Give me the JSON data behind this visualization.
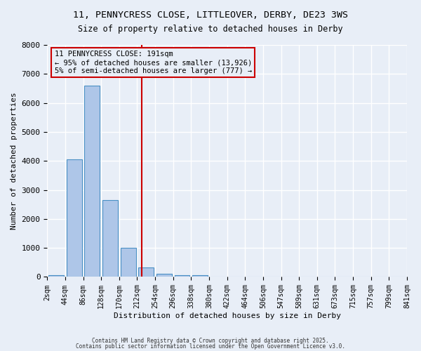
{
  "title_line1": "11, PENNYCRESS CLOSE, LITTLEOVER, DERBY, DE23 3WS",
  "title_line2": "Size of property relative to detached houses in Derby",
  "xlabel": "Distribution of detached houses by size in Derby",
  "ylabel": "Number of detached properties",
  "bar_values": [
    50,
    4050,
    6600,
    2650,
    1000,
    330,
    110,
    70,
    50,
    0,
    0,
    0,
    0,
    0,
    0,
    0,
    0,
    0,
    0,
    0
  ],
  "bar_labels": [
    "2sqm",
    "44sqm",
    "86sqm",
    "128sqm",
    "170sqm",
    "212sqm",
    "254sqm",
    "296sqm",
    "338sqm",
    "380sqm",
    "422sqm",
    "464sqm",
    "506sqm",
    "547sqm",
    "589sqm",
    "631sqm",
    "673sqm",
    "715sqm",
    "757sqm",
    "799sqm",
    "841sqm"
  ],
  "bar_color": "#aec6e8",
  "bar_edge_color": "#4a90c4",
  "background_color": "#e8eef7",
  "grid_color": "#ffffff",
  "vline_x": 4.75,
  "vline_color": "#cc0000",
  "annotation_text": "11 PENNYCRESS CLOSE: 191sqm\n← 95% of detached houses are smaller (13,926)\n5% of semi-detached houses are larger (777) →",
  "annotation_box_color": "#cc0000",
  "ylim": [
    0,
    8000
  ],
  "yticks": [
    0,
    1000,
    2000,
    3000,
    4000,
    5000,
    6000,
    7000,
    8000
  ],
  "footer_line1": "Contains HM Land Registry data © Crown copyright and database right 2025.",
  "footer_line2": "Contains public sector information licensed under the Open Government Licence v3.0."
}
